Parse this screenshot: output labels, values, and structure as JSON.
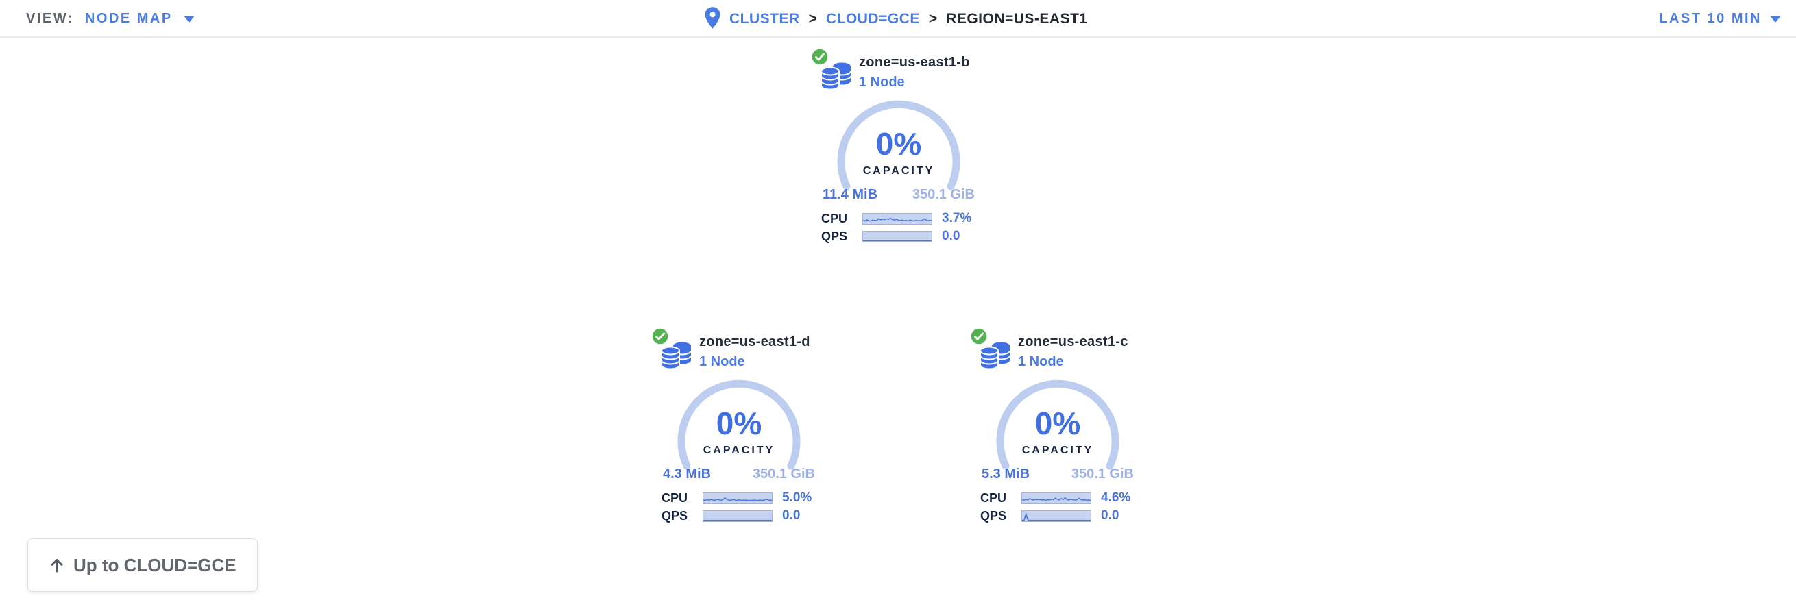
{
  "topbar": {
    "view": {
      "label": "VIEW:",
      "value": "NODE MAP"
    },
    "breadcrumb": {
      "separator": ">",
      "items": [
        {
          "label": "CLUSTER"
        },
        {
          "label": "CLOUD=GCE"
        },
        {
          "label": "REGION=US-EAST1"
        }
      ]
    },
    "time_range": {
      "label": "LAST 10 MIN"
    }
  },
  "cards": [
    {
      "title": "zone=us-east1-b",
      "subtitle": "1 Node",
      "status": "healthy",
      "capacity_percent": "0%",
      "capacity_label": "CAPACITY",
      "capacity_used": "11.4 MiB",
      "capacity_total": "350.1 GiB",
      "cpu_label": "CPU",
      "cpu_value": "3.7%",
      "qps_label": "QPS",
      "qps_value": "0.0",
      "cpu_spark": [
        0.38,
        0.3,
        0.45,
        0.32,
        0.3,
        0.42,
        0.35,
        0.36,
        0.62,
        0.45,
        0.55,
        0.48,
        0.6,
        0.52,
        0.68,
        0.48,
        0.42,
        0.55,
        0.4,
        0.35,
        0.42,
        0.32,
        0.38,
        0.3,
        0.42,
        0.35,
        0.3,
        0.38,
        0.32,
        0.35,
        0.3,
        0.58,
        0.45,
        0.32,
        0.38,
        0.35
      ],
      "qps_spark": [
        0,
        0,
        0,
        0,
        0,
        0,
        0,
        0,
        0,
        0,
        0,
        0,
        0,
        0,
        0,
        0,
        0,
        0,
        0,
        0,
        0,
        0,
        0,
        0,
        0,
        0,
        0,
        0,
        0,
        0,
        0,
        0,
        0,
        0,
        0,
        0
      ]
    },
    {
      "title": "zone=us-east1-d",
      "subtitle": "1 Node",
      "status": "healthy",
      "capacity_percent": "0%",
      "capacity_label": "CAPACITY",
      "capacity_used": "4.3 MiB",
      "capacity_total": "350.1 GiB",
      "cpu_label": "CPU",
      "cpu_value": "5.0%",
      "qps_label": "QPS",
      "qps_value": "0.0",
      "cpu_spark": [
        0.35,
        0.3,
        0.4,
        0.32,
        0.42,
        0.35,
        0.3,
        0.45,
        0.38,
        0.32,
        0.4,
        0.65,
        0.45,
        0.35,
        0.3,
        0.42,
        0.35,
        0.3,
        0.38,
        0.32,
        0.35,
        0.3,
        0.35,
        0.28,
        0.32,
        0.3,
        0.35,
        0.3,
        0.28,
        0.35,
        0.3,
        0.32,
        0.45,
        0.38,
        0.3,
        0.35
      ],
      "qps_spark": [
        0,
        0,
        0,
        0,
        0,
        0,
        0,
        0,
        0,
        0,
        0,
        0,
        0,
        0,
        0,
        0,
        0,
        0,
        0,
        0,
        0,
        0,
        0,
        0,
        0,
        0,
        0,
        0,
        0,
        0,
        0,
        0,
        0,
        0,
        0,
        0
      ]
    },
    {
      "title": "zone=us-east1-c",
      "subtitle": "1 Node",
      "status": "healthy",
      "capacity_percent": "0%",
      "capacity_label": "CAPACITY",
      "capacity_used": "5.3 MiB",
      "capacity_total": "350.1 GiB",
      "cpu_label": "CPU",
      "cpu_value": "4.6%",
      "qps_label": "QPS",
      "qps_value": "0.0",
      "cpu_spark": [
        0.4,
        0.32,
        0.45,
        0.35,
        0.55,
        0.4,
        0.35,
        0.45,
        0.38,
        0.42,
        0.35,
        0.4,
        0.32,
        0.38,
        0.35,
        0.45,
        0.4,
        0.62,
        0.45,
        0.35,
        0.55,
        0.42,
        0.65,
        0.4,
        0.35,
        0.45,
        0.38,
        0.32,
        0.4,
        0.58,
        0.42,
        0.35,
        0.38,
        0.32,
        0.35,
        0.3
      ],
      "qps_spark": [
        0,
        0,
        0.88,
        0.04,
        0,
        0,
        0,
        0,
        0,
        0,
        0,
        0,
        0,
        0,
        0,
        0,
        0,
        0,
        0,
        0,
        0,
        0,
        0,
        0,
        0,
        0,
        0,
        0,
        0,
        0,
        0,
        0,
        0,
        0,
        0,
        0
      ]
    }
  ],
  "up_button": {
    "label": "Up to CLOUD=GCE"
  },
  "colors": {
    "link_blue": "#4a7ce4",
    "value_blue": "#3f6fe0",
    "arc_blue": "#bccdf0",
    "total_blue": "#9db1e4",
    "dark_text": "#242c3a",
    "healthy_green": "#54b152"
  }
}
